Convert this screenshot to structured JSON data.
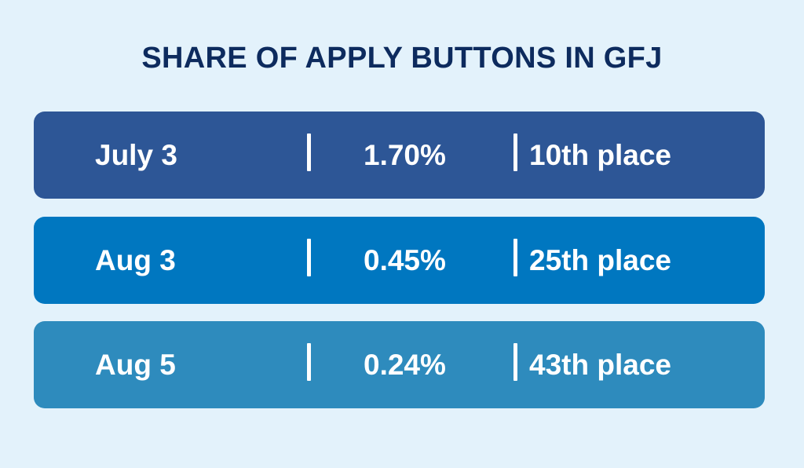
{
  "title": "SHARE OF APPLY BUTTONS IN GFJ",
  "colors": {
    "background": "#e3f2fb",
    "title": "#0d2b5e",
    "row_1": "#2d5696",
    "row_2": "#0077c0",
    "row_3": "#2e8bbd",
    "text": "#ffffff"
  },
  "rows": [
    {
      "date": "July 3",
      "divider": "|",
      "share": "1.70%",
      "place": "10th place"
    },
    {
      "date": "Aug 3",
      "divider": "|",
      "share": "0.45%",
      "place": "25th place"
    },
    {
      "date": "Aug 5",
      "divider": "|",
      "share": "0.24%",
      "place": "43th place"
    }
  ]
}
